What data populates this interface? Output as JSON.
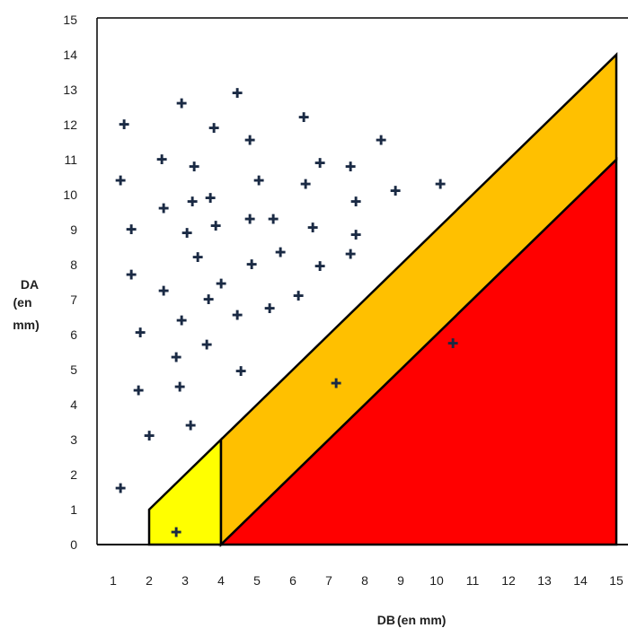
{
  "chart_data": {
    "type": "scatter",
    "xlabel": "DB",
    "xlabel_unit": "(en mm)",
    "ylabel_lines": [
      "DA",
      "(en",
      "mm)"
    ],
    "xlim": [
      1,
      15
    ],
    "ylim": [
      0,
      15
    ],
    "x_ticks": [
      1,
      2,
      3,
      4,
      5,
      6,
      7,
      8,
      9,
      10,
      11,
      12,
      13,
      14,
      15
    ],
    "y_ticks": [
      0,
      1,
      2,
      3,
      4,
      5,
      6,
      7,
      8,
      9,
      10,
      11,
      12,
      13,
      14,
      15
    ],
    "grid": false,
    "regions": [
      {
        "color": "#ffff00",
        "polygon": [
          [
            2,
            0
          ],
          [
            2,
            1
          ],
          [
            4,
            3
          ],
          [
            4,
            0
          ]
        ]
      },
      {
        "color": "#ffc000",
        "polygon": [
          [
            4,
            0
          ],
          [
            4,
            3
          ],
          [
            15,
            14
          ],
          [
            15,
            11
          ]
        ]
      },
      {
        "color": "#ff0000",
        "polygon": [
          [
            4,
            0
          ],
          [
            15,
            11
          ],
          [
            15,
            0
          ]
        ]
      }
    ],
    "points": [
      {
        "x": 1.2,
        "y": 1.6
      },
      {
        "x": 1.2,
        "y": 10.4
      },
      {
        "x": 1.3,
        "y": 12.0
      },
      {
        "x": 1.5,
        "y": 7.7
      },
      {
        "x": 1.5,
        "y": 9.0
      },
      {
        "x": 1.7,
        "y": 4.4
      },
      {
        "x": 1.75,
        "y": 6.05
      },
      {
        "x": 2.0,
        "y": 3.1
      },
      {
        "x": 2.35,
        "y": 11.0
      },
      {
        "x": 2.4,
        "y": 9.6
      },
      {
        "x": 2.4,
        "y": 7.25
      },
      {
        "x": 2.75,
        "y": 0.35
      },
      {
        "x": 2.75,
        "y": 5.35
      },
      {
        "x": 2.85,
        "y": 4.5
      },
      {
        "x": 2.9,
        "y": 6.4
      },
      {
        "x": 2.9,
        "y": 12.6
      },
      {
        "x": 3.05,
        "y": 8.9
      },
      {
        "x": 3.15,
        "y": 3.4
      },
      {
        "x": 3.2,
        "y": 9.8
      },
      {
        "x": 3.25,
        "y": 10.8
      },
      {
        "x": 3.35,
        "y": 8.2
      },
      {
        "x": 3.6,
        "y": 5.7
      },
      {
        "x": 3.65,
        "y": 7.0
      },
      {
        "x": 3.7,
        "y": 9.9
      },
      {
        "x": 3.8,
        "y": 11.9
      },
      {
        "x": 3.85,
        "y": 9.1
      },
      {
        "x": 4.0,
        "y": 7.45
      },
      {
        "x": 4.45,
        "y": 12.9
      },
      {
        "x": 4.45,
        "y": 6.55
      },
      {
        "x": 4.55,
        "y": 4.95
      },
      {
        "x": 4.8,
        "y": 11.55
      },
      {
        "x": 4.8,
        "y": 9.3
      },
      {
        "x": 4.85,
        "y": 8.0
      },
      {
        "x": 5.05,
        "y": 10.4
      },
      {
        "x": 5.35,
        "y": 6.75
      },
      {
        "x": 5.45,
        "y": 9.3
      },
      {
        "x": 5.65,
        "y": 8.35
      },
      {
        "x": 6.15,
        "y": 7.1
      },
      {
        "x": 6.3,
        "y": 12.2
      },
      {
        "x": 6.35,
        "y": 10.3
      },
      {
        "x": 6.55,
        "y": 9.05
      },
      {
        "x": 6.75,
        "y": 10.9
      },
      {
        "x": 6.75,
        "y": 7.95
      },
      {
        "x": 7.2,
        "y": 4.6
      },
      {
        "x": 7.6,
        "y": 10.8
      },
      {
        "x": 7.6,
        "y": 8.3
      },
      {
        "x": 7.75,
        "y": 9.8
      },
      {
        "x": 7.75,
        "y": 8.85
      },
      {
        "x": 8.45,
        "y": 11.55
      },
      {
        "x": 8.85,
        "y": 10.1
      },
      {
        "x": 10.1,
        "y": 10.3
      },
      {
        "x": 10.45,
        "y": 5.75
      }
    ]
  }
}
